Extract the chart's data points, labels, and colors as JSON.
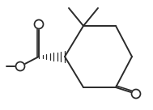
{
  "bg_color": "#ffffff",
  "line_color": "#2a2a2a",
  "line_width": 1.4,
  "figsize": [
    1.89,
    1.36
  ],
  "dpi": 100
}
